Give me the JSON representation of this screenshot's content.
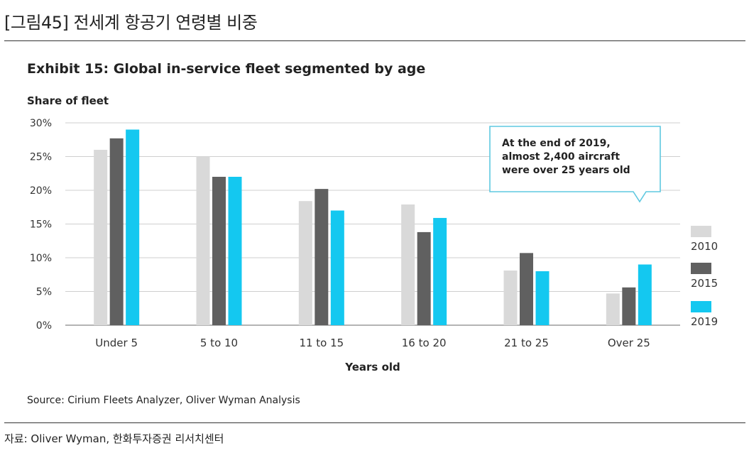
{
  "header": {
    "title": "[그림45]  전세계 항공기 연령별 비중"
  },
  "footer": {
    "source": "자료: Oliver Wyman, 한화투자증권 리서치센터"
  },
  "colors": {
    "s2010": "#d9d9d9",
    "s2015": "#606060",
    "s2019": "#14c8f0",
    "annotation_border": "#5ec8e0"
  },
  "chart_data": {
    "type": "bar",
    "title": "Exhibit 15: Global in-service fleet segmented by age",
    "ylabel": "Share of fleet",
    "xlabel": "Years old",
    "categories": [
      "Under 5",
      "5 to 10",
      "11 to 15",
      "16 to 20",
      "21 to 25",
      "Over 25"
    ],
    "series": [
      {
        "name": "2010",
        "values": [
          26,
          25,
          18.4,
          17.9,
          8.1,
          4.7
        ]
      },
      {
        "name": "2015",
        "values": [
          27.7,
          22,
          20.2,
          13.8,
          10.7,
          5.6
        ]
      },
      {
        "name": "2019",
        "values": [
          29,
          22,
          17,
          15.9,
          8,
          9
        ]
      }
    ],
    "ylim": [
      0,
      30
    ],
    "yticks": [
      "0%",
      "5%",
      "10%",
      "15%",
      "20%",
      "25%",
      "30%"
    ],
    "grid": true,
    "legend_position": "right",
    "annotation": [
      "At the end of 2019,",
      "almost 2,400 aircraft",
      "were over 25 years old"
    ],
    "source": "Source: Cirium Fleets Analyzer, Oliver Wyman Analysis"
  }
}
